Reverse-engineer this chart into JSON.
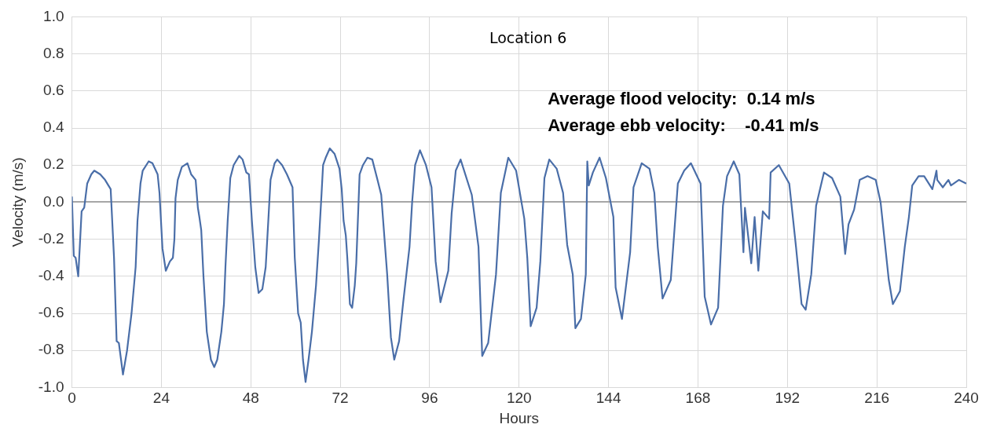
{
  "chart_data": {
    "type": "line",
    "xlabel": "Hours",
    "ylabel": "Velocity (m/s)",
    "annotations": [
      "Location 6",
      "Average flood velocity:  0.14 m/s",
      "Average ebb velocity:    -0.41 m/s"
    ],
    "xlim": [
      0,
      240
    ],
    "xticks": [
      0,
      24,
      48,
      72,
      96,
      120,
      144,
      168,
      192,
      216,
      240
    ],
    "ylim": [
      -1.0,
      1.0
    ],
    "yticks": [
      {
        "value": -1.0,
        "label": "-1.0"
      },
      {
        "value": -0.8,
        "label": "-0.8"
      },
      {
        "value": -0.6,
        "label": "-0.6"
      },
      {
        "value": -0.4,
        "label": "-0.4"
      },
      {
        "value": -0.2,
        "label": "-0.2"
      },
      {
        "value": 0,
        "label": "0.0"
      },
      {
        "value": 0.2,
        "label": "0.2"
      },
      {
        "value": 0.4,
        "label": "0.4"
      },
      {
        "value": 0.6,
        "label": "0.6"
      },
      {
        "value": 0.8,
        "label": "0.8"
      },
      {
        "value": 1.0,
        "label": "1.0"
      }
    ],
    "grid": true,
    "legend": false,
    "marker": "none",
    "line_style": "solid",
    "series": [
      {
        "color": "#4a6ea8",
        "x": [
          0,
          0.5,
          1,
          1.7,
          2.6,
          3.3,
          4.1,
          5.2,
          6,
          7.6,
          8.9,
          10.4,
          11.3,
          12,
          12.6,
          13.7,
          14.8,
          16,
          17.1,
          17.6,
          18.4,
          19,
          20.6,
          21.6,
          23,
          23.5,
          24.3,
          25.2,
          26.3,
          27.1,
          27.5,
          27.8,
          28.4,
          29.5,
          31,
          32,
          33.2,
          33.8,
          34.2,
          34.7,
          35.3,
          36.2,
          37.3,
          38.2,
          39,
          40.1,
          40.8,
          41.2,
          41.8,
          42.5,
          43.4,
          44.9,
          45.8,
          46.8,
          47.5,
          48.3,
          49.2,
          50.1,
          51.1,
          52,
          52.7,
          53.3,
          54.4,
          55.1,
          56.4,
          57.7,
          59.2,
          59.8,
          60.7,
          61.4,
          62,
          62.7,
          63.5,
          64.4,
          65.5,
          66.3,
          67,
          67.4,
          68.1,
          69.2,
          70.5,
          71.8,
          72.4,
          72.9,
          73.5,
          73.9,
          74.6,
          75.2,
          75.9,
          76.3,
          77.2,
          78.1,
          79.3,
          80.6,
          82,
          83,
          84.6,
          85.6,
          86.5,
          87.8,
          88.9,
          90.6,
          91.3,
          92.1,
          93.4,
          95,
          96.5,
          97.6,
          98.9,
          101,
          101.9,
          103,
          104.3,
          107.3,
          109.1,
          110.1,
          111.7,
          113.8,
          115.1,
          117.1,
          119.2,
          121.4,
          122.2,
          123.1,
          124.7,
          125.7,
          126.8,
          128.1,
          130.1,
          131.8,
          132.9,
          134.4,
          135.1,
          136.6,
          137.9,
          138.3,
          138.7,
          139.8,
          141.6,
          143.3,
          145.3,
          145.9,
          147.6,
          149.8,
          150.7,
          152.9,
          155,
          156.3,
          157.2,
          158.5,
          160.7,
          162.6,
          164.3,
          166.1,
          168.7,
          169.8,
          171.5,
          173.4,
          174.7,
          175.8,
          177.6,
          179.1,
          180.2,
          180.6,
          182.3,
          183.2,
          184.2,
          185.4,
          187.1,
          187.5,
          189.7,
          192.5,
          194.3,
          195.8,
          196.9,
          198.4,
          199.7,
          201.8,
          204,
          206.2,
          207.5,
          208.4,
          209.9,
          211.4,
          213.5,
          215.7,
          217,
          219.2,
          220.3,
          222.2,
          223.5,
          224.6,
          225.5,
          227.2,
          228.7,
          230.9,
          232,
          232.2,
          233.7,
          235.2,
          235.9,
          238,
          240
        ],
        "values": [
          0.03,
          -0.29,
          -0.3,
          -0.4,
          -0.05,
          -0.03,
          0.1,
          0.15,
          0.17,
          0.15,
          0.12,
          0.07,
          -0.3,
          -0.75,
          -0.76,
          -0.93,
          -0.8,
          -0.6,
          -0.35,
          -0.1,
          0.1,
          0.17,
          0.22,
          0.21,
          0.15,
          0.05,
          -0.25,
          -0.37,
          -0.32,
          -0.3,
          -0.2,
          0.02,
          0.12,
          0.19,
          0.21,
          0.15,
          0.12,
          -0.03,
          -0.08,
          -0.15,
          -0.4,
          -0.7,
          -0.85,
          -0.89,
          -0.85,
          -0.7,
          -0.55,
          -0.35,
          -0.1,
          0.13,
          0.2,
          0.25,
          0.23,
          0.16,
          0.15,
          -0.1,
          -0.35,
          -0.49,
          -0.47,
          -0.35,
          -0.1,
          0.12,
          0.21,
          0.23,
          0.2,
          0.15,
          0.08,
          -0.3,
          -0.6,
          -0.65,
          -0.85,
          -0.97,
          -0.85,
          -0.7,
          -0.45,
          -0.2,
          0.05,
          0.2,
          0.24,
          0.29,
          0.26,
          0.18,
          0.07,
          -0.1,
          -0.18,
          -0.3,
          -0.55,
          -0.57,
          -0.45,
          -0.33,
          0.15,
          0.2,
          0.24,
          0.23,
          0.12,
          0.04,
          -0.39,
          -0.73,
          -0.85,
          -0.75,
          -0.54,
          -0.24,
          0,
          0.2,
          0.28,
          0.2,
          0.08,
          -0.32,
          -0.54,
          -0.37,
          -0.06,
          0.17,
          0.23,
          0.04,
          -0.24,
          -0.83,
          -0.76,
          -0.39,
          0.05,
          0.24,
          0.17,
          -0.09,
          -0.3,
          -0.67,
          -0.57,
          -0.32,
          0.13,
          0.23,
          0.18,
          0.05,
          -0.23,
          -0.39,
          -0.68,
          -0.63,
          -0.39,
          0.22,
          0.09,
          0.16,
          0.24,
          0.13,
          -0.08,
          -0.46,
          -0.63,
          -0.27,
          0.08,
          0.21,
          0.18,
          0.05,
          -0.24,
          -0.52,
          -0.42,
          0.1,
          0.17,
          0.21,
          0.1,
          -0.51,
          -0.66,
          -0.57,
          -0.02,
          0.14,
          0.22,
          0.15,
          -0.27,
          -0.03,
          -0.33,
          -0.08,
          -0.37,
          -0.05,
          -0.09,
          0.16,
          0.2,
          0.1,
          -0.24,
          -0.55,
          -0.58,
          -0.39,
          -0.02,
          0.16,
          0.13,
          0.03,
          -0.28,
          -0.12,
          -0.04,
          0.12,
          0.14,
          0.12,
          0,
          -0.42,
          -0.55,
          -0.48,
          -0.24,
          -0.08,
          0.09,
          0.14,
          0.14,
          0.07,
          0.17,
          0.12,
          0.08,
          0.12,
          0.09,
          0.12,
          0.1
        ]
      }
    ]
  }
}
